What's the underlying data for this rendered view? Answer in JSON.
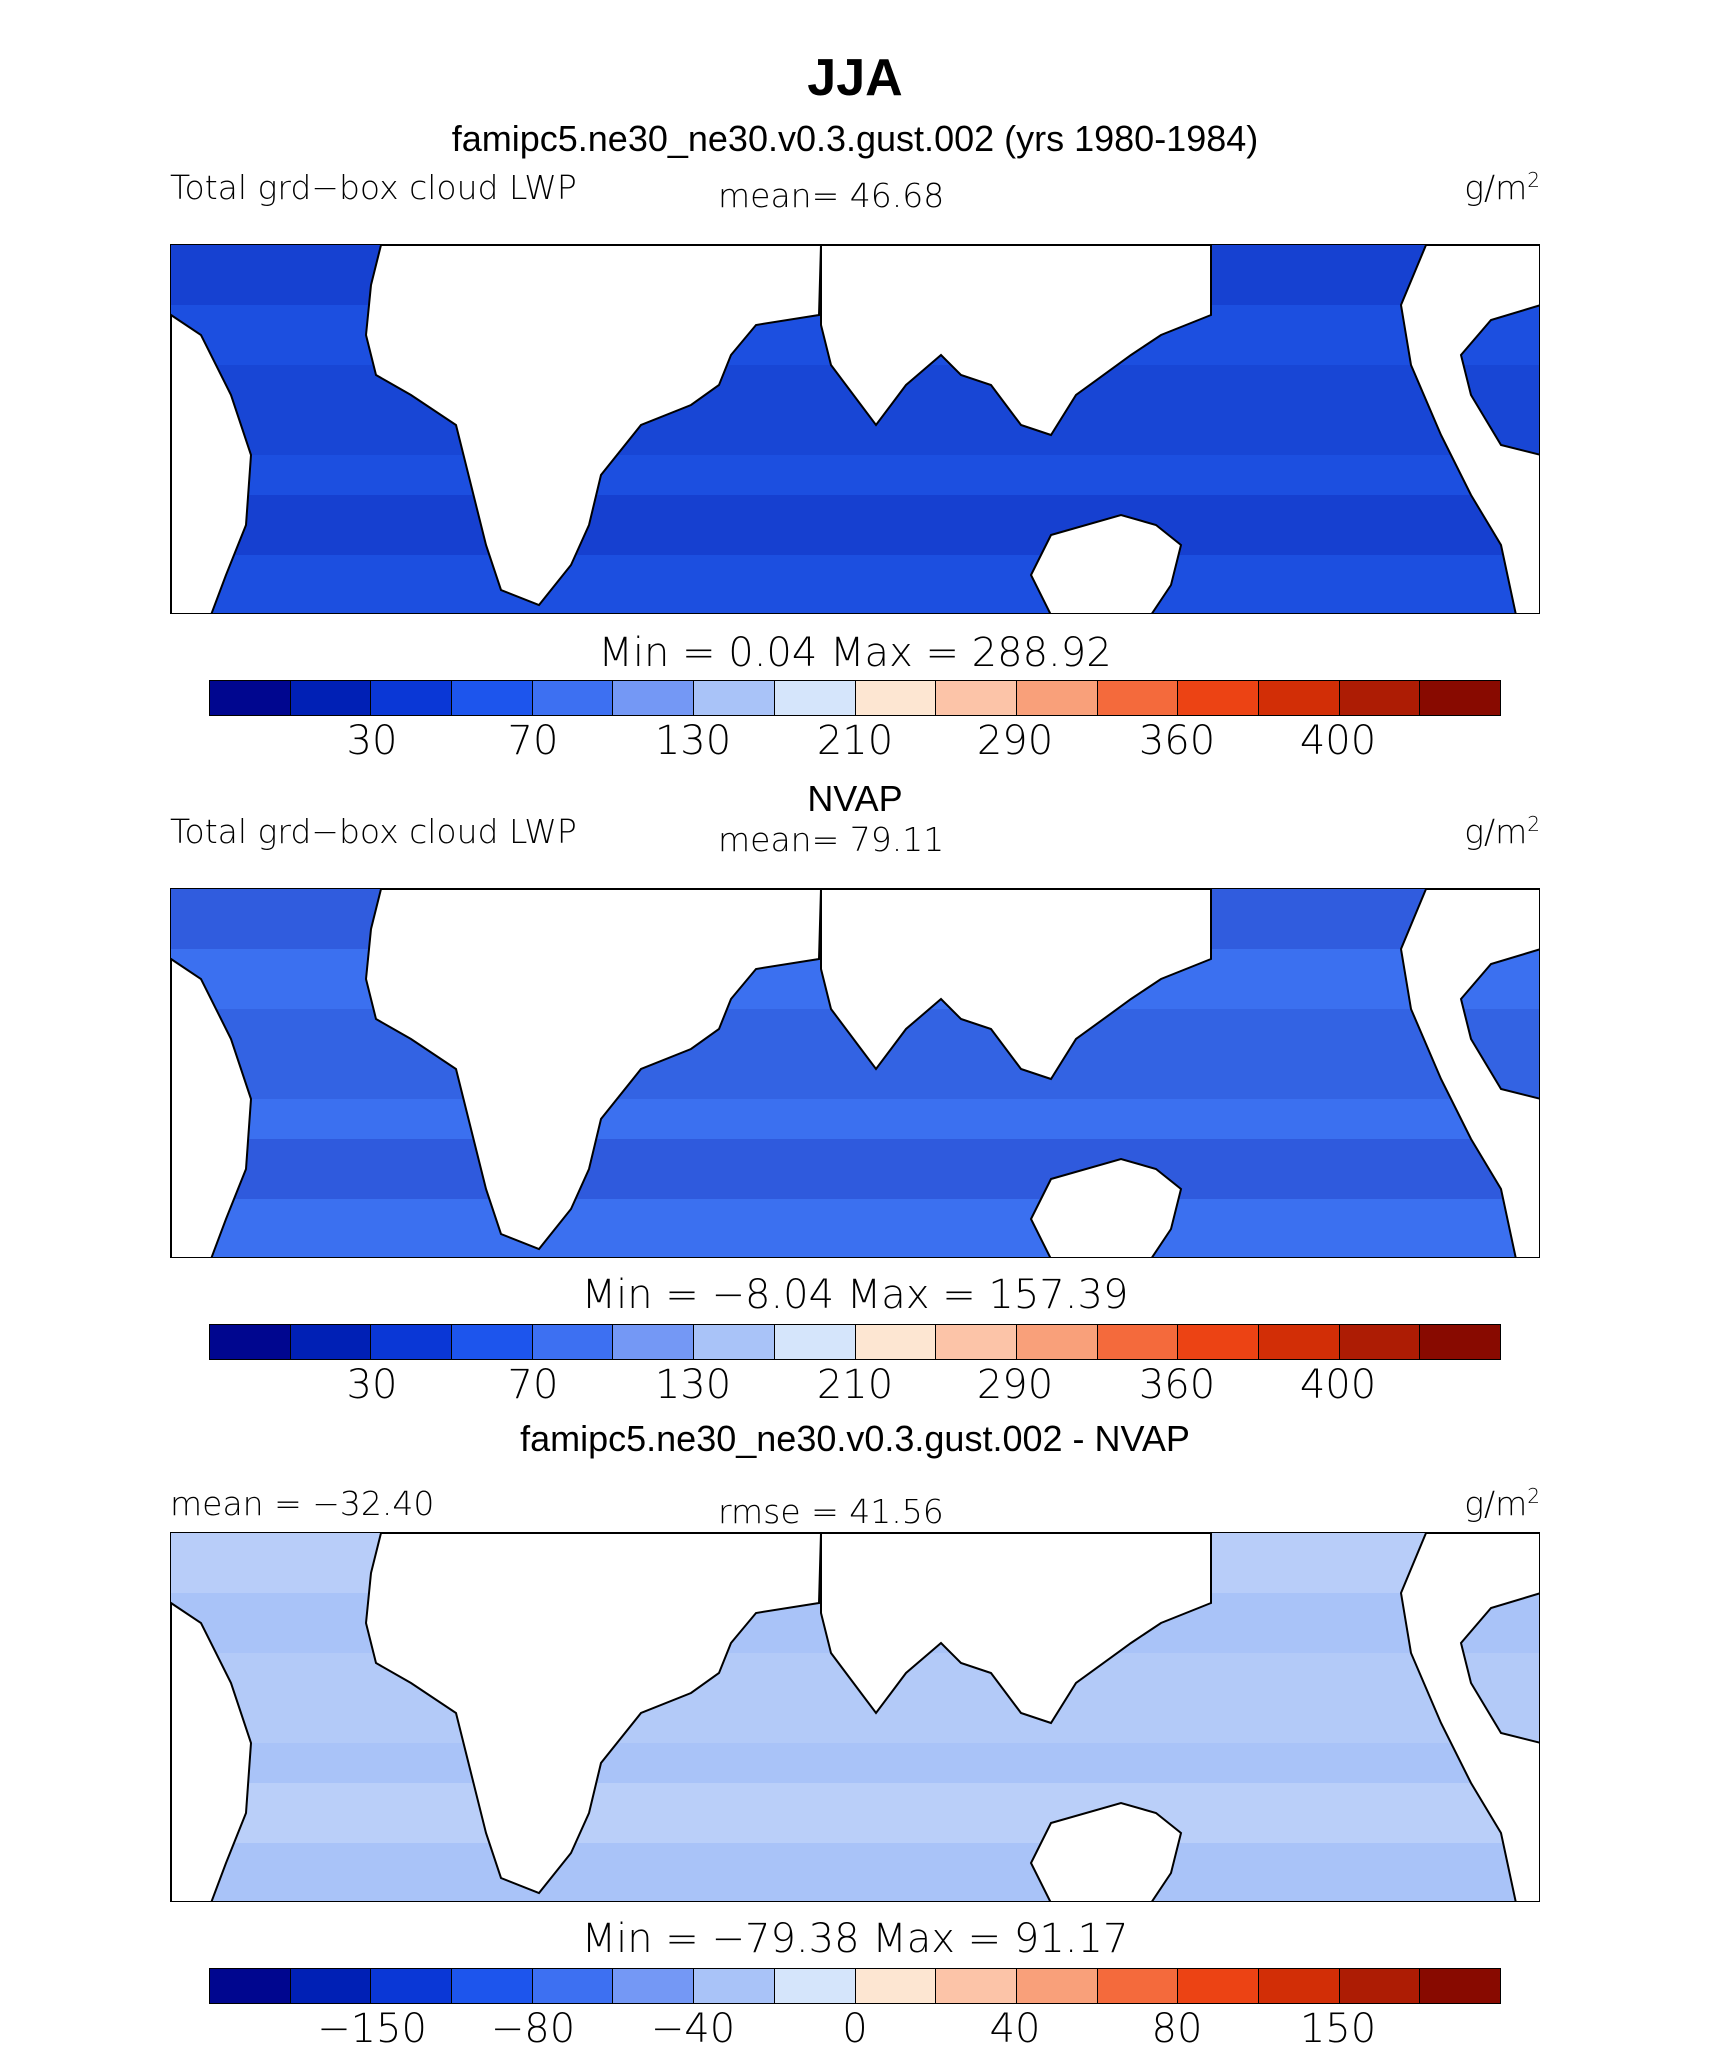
{
  "title": "JJA",
  "panels": [
    {
      "id": "model",
      "heading": "famipc5.ne30_ne30.v0.3.gust.002 (yrs 1980-1984)",
      "left_label": "Total grd−box cloud LWP",
      "center_label": "mean=  46.68",
      "units_base": "g/m",
      "units_exp": "2",
      "minmax": "Min =    0.04  Max =  288.92",
      "ticks": [
        "30",
        "70",
        "130",
        "210",
        "290",
        "360",
        "400"
      ],
      "fill": "#1c4fe0",
      "land_color": "#ffffff"
    },
    {
      "id": "obs",
      "heading": "NVAP",
      "left_label": "Total grd−box cloud LWP",
      "center_label": "mean=  79.11",
      "units_base": "g/m",
      "units_exp": "2",
      "minmax": "Min =   −8.04  Max =  157.39",
      "ticks": [
        "30",
        "70",
        "130",
        "210",
        "290",
        "360",
        "400"
      ],
      "fill": "#3b70f0",
      "land_color": "#ffffff"
    },
    {
      "id": "diff",
      "heading": "famipc5.ne30_ne30.v0.3.gust.002 - NVAP",
      "left_label": "mean = −32.40",
      "center_label": "rmse =  41.56",
      "units_base": "g/m",
      "units_exp": "2",
      "minmax": "Min = −79.38  Max =   91.17",
      "ticks": [
        "−150",
        "−80",
        "−40",
        "0",
        "40",
        "80",
        "150"
      ],
      "fill": "#a9c3f8",
      "land_color": "#ffffff"
    }
  ],
  "colorbar": [
    "#00068f",
    "#0020b5",
    "#0a37d6",
    "#1d55ed",
    "#3d70f2",
    "#7498f5",
    "#a9c3f8",
    "#d5e5fb",
    "#fde6d2",
    "#fcc4a8",
    "#f9a07a",
    "#f46a3c",
    "#ec4314",
    "#d22e06",
    "#ad1c04",
    "#880a00"
  ]
}
